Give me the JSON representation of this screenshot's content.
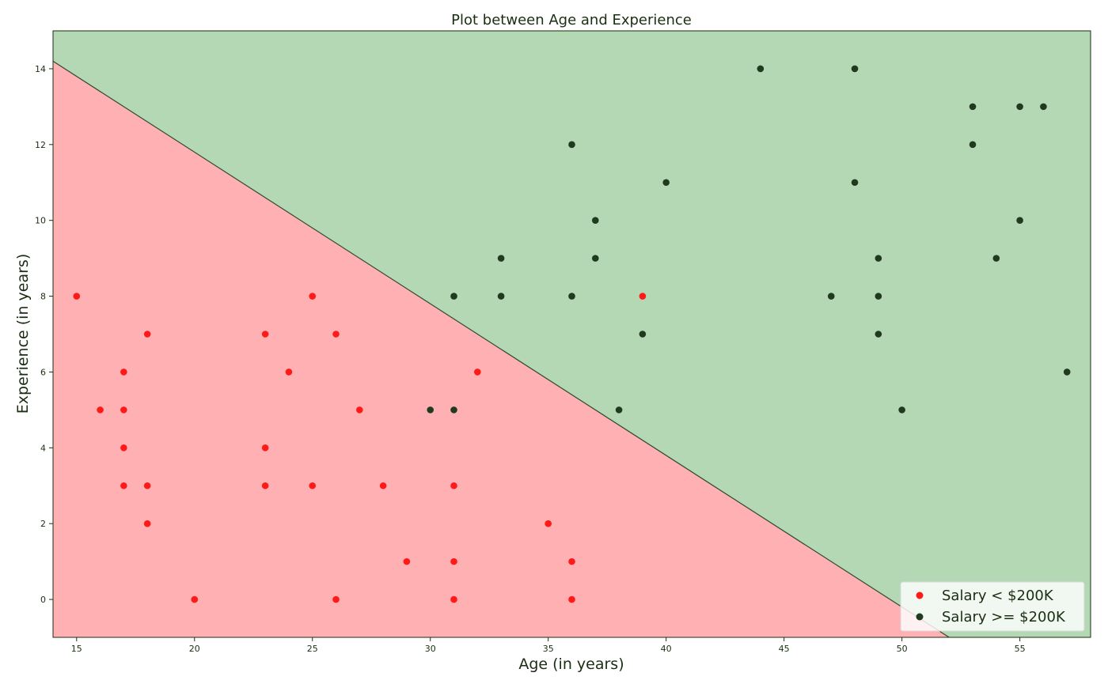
{
  "chart_data": {
    "type": "scatter",
    "title": "Plot between Age and Experience",
    "xlabel": "Age (in years)",
    "ylabel": "Experience (in years)",
    "xlim": [
      14,
      58
    ],
    "ylim": [
      -1,
      15
    ],
    "xticks": [
      15,
      20,
      25,
      30,
      35,
      40,
      45,
      50,
      55
    ],
    "yticks": [
      0,
      2,
      4,
      6,
      8,
      10,
      12,
      14
    ],
    "grid": false,
    "legend_position": "bottom-right",
    "decision_boundary": {
      "points": [
        [
          14,
          14.2
        ],
        [
          52,
          -1
        ]
      ],
      "below_color": "#ffb0b3",
      "above_color": "#b3d8b3",
      "line_color": "#2e4a2e"
    },
    "series": [
      {
        "name": "Salary < $200K",
        "color": "#ff1a1a",
        "points": [
          [
            15,
            8
          ],
          [
            16,
            5
          ],
          [
            17,
            6
          ],
          [
            17,
            5
          ],
          [
            17,
            4
          ],
          [
            17,
            3
          ],
          [
            18,
            7
          ],
          [
            18,
            3
          ],
          [
            18,
            2
          ],
          [
            20,
            0
          ],
          [
            23,
            7
          ],
          [
            23,
            4
          ],
          [
            23,
            3
          ],
          [
            24,
            6
          ],
          [
            25,
            8
          ],
          [
            25,
            3
          ],
          [
            26,
            7
          ],
          [
            26,
            0
          ],
          [
            27,
            5
          ],
          [
            28,
            3
          ],
          [
            29,
            1
          ],
          [
            31,
            3
          ],
          [
            31,
            1
          ],
          [
            31,
            0
          ],
          [
            32,
            6
          ],
          [
            35,
            2
          ],
          [
            36,
            1
          ],
          [
            36,
            0
          ],
          [
            39,
            8
          ]
        ]
      },
      {
        "name": "Salary >= $200K",
        "color": "#1f3a1f",
        "points": [
          [
            30,
            5
          ],
          [
            31,
            8
          ],
          [
            31,
            5
          ],
          [
            33,
            9
          ],
          [
            33,
            8
          ],
          [
            36,
            12
          ],
          [
            36,
            8
          ],
          [
            37,
            10
          ],
          [
            37,
            9
          ],
          [
            38,
            5
          ],
          [
            39,
            7
          ],
          [
            40,
            11
          ],
          [
            44,
            14
          ],
          [
            47,
            8
          ],
          [
            48,
            14
          ],
          [
            48,
            11
          ],
          [
            49,
            9
          ],
          [
            49,
            8
          ],
          [
            49,
            7
          ],
          [
            50,
            5
          ],
          [
            53,
            13
          ],
          [
            53,
            12
          ],
          [
            54,
            9
          ],
          [
            55,
            13
          ],
          [
            55,
            10
          ],
          [
            56,
            13
          ],
          [
            57,
            6
          ]
        ]
      }
    ]
  }
}
